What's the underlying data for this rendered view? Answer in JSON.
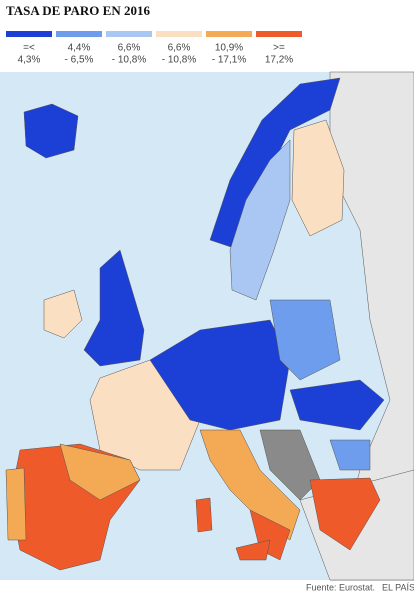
{
  "header": {
    "title": "TASA DE PARO EN 2016"
  },
  "legend": {
    "items": [
      {
        "lines": [
          "=<",
          "4,3%"
        ],
        "color": "#1c3fd6"
      },
      {
        "lines": [
          "4,4%",
          "- 6,5%"
        ],
        "color": "#6e9ded"
      },
      {
        "lines": [
          "6,6%",
          "- 10,8%"
        ],
        "color": "#a9c7f2"
      },
      {
        "lines": [
          "6,6%",
          "- 10,8%"
        ],
        "color": "#fbdfc2"
      },
      {
        "lines": [
          "10,9%",
          "- 17,1%"
        ],
        "color": "#f4a954"
      },
      {
        "lines": [
          ">=",
          "17,2%"
        ],
        "color": "#ef5a2a"
      }
    ]
  },
  "footer": {
    "source": "Fuente: Eurostat.",
    "brand": "EL PAÍS"
  }
}
